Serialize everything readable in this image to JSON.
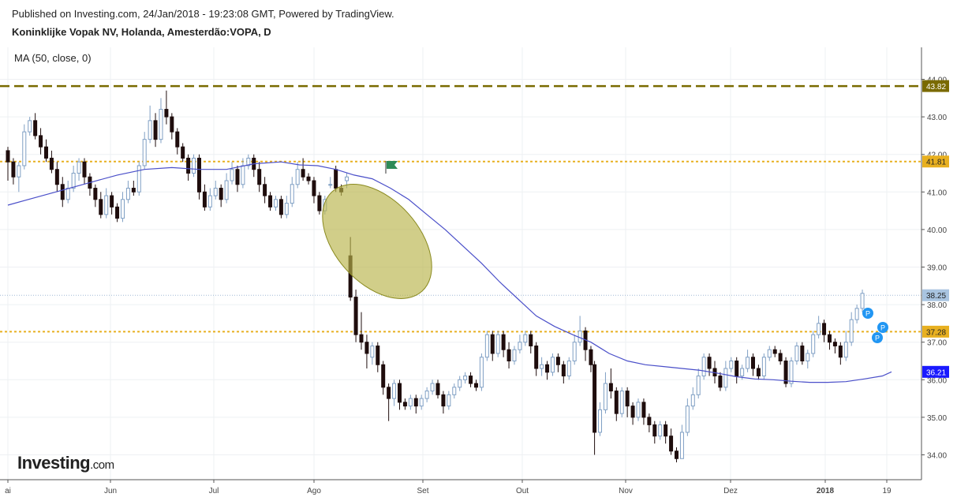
{
  "header": {
    "published": "Published on Investing.com, 24/Jan/2018 - 19:23:08 GMT, Powered by TradingView.",
    "symbol": "Koninklijke Vopak NV, Holanda, Amesterdão:VOPA, D",
    "indicator": "MA (50, close, 0)"
  },
  "logo": {
    "brand": "Investing",
    "domain": ".com"
  },
  "colors": {
    "up": "#a9c4e0",
    "down": "#1f0d0d",
    "ma": "#4a4fc9",
    "resistance_dashed": "#7a6a00",
    "level_dotted": "#e8b020",
    "price_badge": "#a9c4e0",
    "ma_badge": "#1a1aff",
    "ellipse": "#b8b34a",
    "marker": "#2196f3",
    "flag": "#2e8b57"
  },
  "chart_data": {
    "type": "candlestick",
    "y_axis": {
      "min": 33.5,
      "max": 44.2,
      "ticks": [
        "34.00",
        "35.00",
        "36.00",
        "37.00",
        "38.00",
        "39.00",
        "40.00",
        "41.00",
        "42.00",
        "43.00",
        "44.00"
      ]
    },
    "x_axis": {
      "labels": [
        "ai",
        "Jun",
        "Jul",
        "Ago",
        "Set",
        "Out",
        "Nov",
        "Dez",
        "2018",
        "19"
      ]
    },
    "horizontal_levels": [
      {
        "value": 43.82,
        "label": "43.82",
        "style": "dashed"
      },
      {
        "value": 41.81,
        "label": "41.81",
        "style": "dotted"
      },
      {
        "value": 37.28,
        "label": "37.28",
        "style": "dotted"
      }
    ],
    "last_price": {
      "value": 38.25,
      "label": "38.25"
    },
    "ma_value": {
      "value": 36.21,
      "label": "36.21"
    },
    "ma_series": [
      [
        0,
        40.65
      ],
      [
        15,
        40.85
      ],
      [
        30,
        41.05
      ],
      [
        45,
        41.25
      ],
      [
        60,
        41.45
      ],
      [
        75,
        41.6
      ],
      [
        90,
        41.65
      ],
      [
        105,
        41.6
      ],
      [
        120,
        41.6
      ],
      [
        135,
        41.75
      ],
      [
        150,
        41.8
      ],
      [
        160,
        41.72
      ],
      [
        170,
        41.7
      ],
      [
        180,
        41.6
      ],
      [
        190,
        41.45
      ],
      [
        200,
        41.35
      ],
      [
        210,
        41.1
      ],
      [
        220,
        40.8
      ],
      [
        230,
        40.4
      ],
      [
        240,
        40.0
      ],
      [
        250,
        39.55
      ],
      [
        260,
        39.1
      ],
      [
        270,
        38.6
      ],
      [
        280,
        38.15
      ],
      [
        290,
        37.7
      ],
      [
        300,
        37.42
      ],
      [
        310,
        37.2
      ],
      [
        320,
        37.0
      ],
      [
        330,
        36.7
      ],
      [
        340,
        36.5
      ],
      [
        350,
        36.4
      ],
      [
        360,
        36.35
      ],
      [
        370,
        36.3
      ],
      [
        380,
        36.25
      ],
      [
        390,
        36.17
      ],
      [
        400,
        36.08
      ],
      [
        410,
        36.02
      ],
      [
        420,
        36.0
      ],
      [
        430,
        35.96
      ],
      [
        440,
        35.93
      ],
      [
        450,
        35.93
      ],
      [
        460,
        35.95
      ],
      [
        470,
        36.02
      ],
      [
        480,
        36.1
      ],
      [
        485,
        36.21
      ]
    ],
    "candles": [
      [
        0,
        42.1,
        41.8,
        42.2,
        41.3
      ],
      [
        3,
        41.8,
        41.4,
        41.9,
        41.2
      ],
      [
        6,
        41.4,
        41.7,
        41.8,
        41.0
      ],
      [
        9,
        41.7,
        42.6,
        42.8,
        41.6
      ],
      [
        12,
        42.6,
        42.9,
        43.0,
        42.5
      ],
      [
        15,
        42.9,
        42.5,
        43.1,
        42.4
      ],
      [
        18,
        42.5,
        42.2,
        42.7,
        42.0
      ],
      [
        21,
        42.2,
        41.9,
        42.4,
        41.8
      ],
      [
        24,
        41.9,
        41.6,
        42.1,
        41.5
      ],
      [
        27,
        41.6,
        41.2,
        41.8,
        41.0
      ],
      [
        30,
        41.2,
        40.8,
        41.4,
        40.6
      ],
      [
        33,
        40.8,
        41.1,
        41.3,
        40.7
      ],
      [
        36,
        41.1,
        41.5,
        41.7,
        41.0
      ],
      [
        39,
        41.5,
        41.8,
        41.9,
        41.3
      ],
      [
        42,
        41.8,
        41.4,
        41.9,
        41.2
      ],
      [
        45,
        41.4,
        41.1,
        41.5,
        40.9
      ],
      [
        48,
        41.1,
        40.8,
        41.2,
        40.6
      ],
      [
        51,
        40.8,
        40.4,
        41.0,
        40.3
      ],
      [
        54,
        40.4,
        40.9,
        41.1,
        40.3
      ],
      [
        57,
        40.9,
        40.6,
        41.0,
        40.4
      ],
      [
        60,
        40.6,
        40.3,
        40.7,
        40.2
      ],
      [
        63,
        40.3,
        40.8,
        41.0,
        40.2
      ],
      [
        66,
        40.8,
        41.1,
        41.3,
        40.7
      ],
      [
        69,
        41.1,
        41.0,
        41.3,
        40.9
      ],
      [
        72,
        41.0,
        41.7,
        41.8,
        40.9
      ],
      [
        75,
        41.7,
        42.4,
        42.6,
        41.6
      ],
      [
        78,
        42.4,
        42.9,
        43.3,
        42.3
      ],
      [
        81,
        42.9,
        42.4,
        43.1,
        42.2
      ],
      [
        84,
        42.4,
        43.2,
        43.5,
        42.3
      ],
      [
        87,
        43.2,
        43.0,
        43.7,
        42.8
      ],
      [
        90,
        43.0,
        42.6,
        43.1,
        42.4
      ],
      [
        93,
        42.6,
        42.2,
        42.7,
        42.0
      ],
      [
        96,
        42.2,
        41.9,
        42.3,
        41.8
      ],
      [
        99,
        41.9,
        41.5,
        42.0,
        41.3
      ],
      [
        102,
        41.5,
        41.9,
        42.0,
        41.4
      ],
      [
        105,
        41.9,
        41.0,
        42.0,
        40.8
      ],
      [
        108,
        41.0,
        40.6,
        41.2,
        40.5
      ],
      [
        111,
        40.6,
        40.9,
        41.1,
        40.5
      ],
      [
        114,
        40.9,
        41.1,
        41.3,
        40.8
      ],
      [
        117,
        41.1,
        40.8,
        41.2,
        40.6
      ],
      [
        120,
        40.8,
        41.3,
        41.5,
        40.7
      ],
      [
        123,
        41.3,
        41.6,
        41.8,
        41.2
      ],
      [
        126,
        41.6,
        41.2,
        41.7,
        41.0
      ],
      [
        129,
        41.2,
        41.7,
        41.9,
        41.1
      ],
      [
        132,
        41.7,
        41.9,
        42.0,
        41.6
      ],
      [
        135,
        41.9,
        41.6,
        42.0,
        41.4
      ],
      [
        138,
        41.6,
        41.2,
        41.8,
        41.0
      ],
      [
        141,
        41.2,
        40.9,
        41.4,
        40.7
      ],
      [
        144,
        40.9,
        40.6,
        41.0,
        40.5
      ],
      [
        147,
        40.6,
        40.8,
        40.9,
        40.5
      ],
      [
        150,
        40.8,
        40.4,
        40.9,
        40.3
      ],
      [
        153,
        40.4,
        40.7,
        40.9,
        40.3
      ],
      [
        156,
        40.7,
        41.2,
        41.4,
        40.6
      ],
      [
        159,
        41.2,
        41.6,
        41.8,
        41.1
      ],
      [
        162,
        41.6,
        41.4,
        41.9,
        41.3
      ],
      [
        165,
        41.4,
        41.3,
        41.5,
        41.2
      ],
      [
        168,
        41.3,
        40.9,
        41.4,
        40.7
      ],
      [
        171,
        40.9,
        40.5,
        41.0,
        40.4
      ],
      [
        174,
        40.5,
        40.8,
        40.9,
        40.4
      ],
      [
        177,
        41.2,
        41.2,
        41.4,
        41.1
      ],
      [
        180,
        41.6,
        41.1,
        41.7,
        41.0
      ],
      [
        183,
        41.1,
        41.0,
        41.2,
        40.9
      ],
      [
        186,
        41.3,
        41.4,
        41.5,
        41.1
      ],
      [
        188,
        39.3,
        38.2,
        39.8,
        38.1
      ],
      [
        191,
        38.2,
        37.2,
        38.4,
        37.0
      ],
      [
        194,
        37.2,
        37.0,
        37.8,
        36.8
      ],
      [
        197,
        37.0,
        36.7,
        37.2,
        36.3
      ],
      [
        200,
        36.6,
        36.9,
        37.0,
        36.4
      ],
      [
        203,
        36.9,
        36.4,
        37.0,
        36.2
      ],
      [
        206,
        36.4,
        35.8,
        36.5,
        35.6
      ],
      [
        209,
        35.8,
        35.5,
        35.9,
        34.9
      ],
      [
        212,
        35.5,
        35.9,
        36.0,
        35.3
      ],
      [
        215,
        35.9,
        35.4,
        36.0,
        35.2
      ],
      [
        218,
        35.4,
        35.3,
        35.5,
        35.2
      ],
      [
        221,
        35.3,
        35.5,
        35.6,
        35.2
      ],
      [
        224,
        35.5,
        35.3,
        35.6,
        35.1
      ],
      [
        227,
        35.3,
        35.5,
        35.6,
        35.2
      ],
      [
        230,
        35.5,
        35.7,
        35.8,
        35.4
      ],
      [
        233,
        35.7,
        35.9,
        36.0,
        35.6
      ],
      [
        236,
        35.9,
        35.6,
        36.0,
        35.5
      ],
      [
        239,
        35.6,
        35.3,
        35.7,
        35.1
      ],
      [
        242,
        35.3,
        35.6,
        35.7,
        35.2
      ],
      [
        245,
        35.6,
        35.8,
        35.9,
        35.5
      ],
      [
        248,
        35.8,
        36.0,
        36.1,
        35.7
      ],
      [
        251,
        36.0,
        36.1,
        36.2,
        35.9
      ],
      [
        254,
        36.1,
        35.9,
        36.2,
        35.8
      ],
      [
        257,
        35.9,
        35.8,
        36.0,
        35.7
      ],
      [
        260,
        35.8,
        36.6,
        36.7,
        35.7
      ],
      [
        263,
        36.6,
        37.2,
        37.3,
        36.5
      ],
      [
        266,
        37.2,
        36.7,
        37.3,
        36.5
      ],
      [
        269,
        36.7,
        37.2,
        37.3,
        36.6
      ],
      [
        272,
        37.2,
        36.8,
        37.3,
        36.6
      ],
      [
        275,
        36.8,
        36.5,
        37.0,
        36.3
      ],
      [
        278,
        36.5,
        36.8,
        36.9,
        36.4
      ],
      [
        281,
        36.8,
        37.0,
        37.2,
        36.7
      ],
      [
        284,
        37.0,
        37.2,
        37.3,
        36.9
      ],
      [
        287,
        37.2,
        36.9,
        37.3,
        36.7
      ],
      [
        290,
        36.9,
        36.3,
        37.0,
        36.1
      ],
      [
        293,
        36.3,
        36.4,
        36.6,
        36.1
      ],
      [
        296,
        36.4,
        36.2,
        36.5,
        36.0
      ],
      [
        299,
        36.2,
        36.6,
        36.7,
        36.1
      ],
      [
        302,
        36.6,
        36.4,
        36.7,
        36.2
      ],
      [
        305,
        36.4,
        36.1,
        36.5,
        35.9
      ],
      [
        308,
        36.1,
        36.5,
        36.6,
        36.0
      ],
      [
        311,
        36.5,
        37.0,
        37.2,
        36.4
      ],
      [
        314,
        37.0,
        37.3,
        37.7,
        36.9
      ],
      [
        317,
        37.3,
        36.8,
        37.4,
        36.5
      ],
      [
        320,
        36.8,
        36.4,
        36.9,
        36.2
      ],
      [
        322,
        36.4,
        34.6,
        36.5,
        34.0
      ],
      [
        325,
        34.6,
        35.2,
        35.4,
        34.5
      ],
      [
        328,
        35.2,
        35.9,
        36.2,
        35.1
      ],
      [
        331,
        35.9,
        35.7,
        36.3,
        35.5
      ],
      [
        334,
        35.7,
        35.1,
        35.8,
        34.9
      ],
      [
        337,
        35.1,
        35.7,
        35.8,
        35.0
      ],
      [
        340,
        35.7,
        35.3,
        35.8,
        35.0
      ],
      [
        343,
        35.3,
        35.0,
        35.4,
        34.8
      ],
      [
        346,
        35.0,
        35.4,
        35.5,
        34.9
      ],
      [
        349,
        35.4,
        35.0,
        35.5,
        34.8
      ],
      [
        352,
        35.0,
        34.8,
        35.1,
        34.6
      ],
      [
        355,
        34.8,
        34.5,
        34.9,
        34.3
      ],
      [
        358,
        34.5,
        34.8,
        34.9,
        34.4
      ],
      [
        361,
        34.8,
        34.5,
        34.9,
        34.3
      ],
      [
        364,
        34.5,
        34.1,
        34.7,
        34.0
      ],
      [
        367,
        34.1,
        33.9,
        34.2,
        33.8
      ],
      [
        370,
        33.9,
        34.6,
        34.8,
        33.9
      ],
      [
        373,
        34.6,
        35.3,
        35.5,
        34.5
      ],
      [
        376,
        35.3,
        35.6,
        35.8,
        35.2
      ],
      [
        379,
        35.6,
        36.1,
        36.3,
        35.5
      ],
      [
        382,
        36.1,
        36.6,
        36.7,
        36.0
      ],
      [
        385,
        36.6,
        36.3,
        36.7,
        36.1
      ],
      [
        388,
        36.3,
        36.1,
        36.5,
        35.9
      ],
      [
        391,
        36.1,
        35.8,
        36.2,
        35.7
      ],
      [
        394,
        35.8,
        36.3,
        36.5,
        35.7
      ],
      [
        397,
        36.3,
        36.5,
        36.6,
        36.2
      ],
      [
        400,
        36.5,
        36.1,
        36.6,
        35.9
      ],
      [
        403,
        36.1,
        36.3,
        36.4,
        36.0
      ],
      [
        406,
        36.3,
        36.6,
        36.8,
        36.2
      ],
      [
        409,
        36.6,
        36.3,
        36.7,
        36.1
      ],
      [
        412,
        36.3,
        36.1,
        36.4,
        36.0
      ],
      [
        415,
        36.1,
        36.6,
        36.7,
        36.0
      ],
      [
        418,
        36.6,
        36.8,
        36.9,
        36.5
      ],
      [
        421,
        36.8,
        36.7,
        36.9,
        36.6
      ],
      [
        424,
        36.7,
        36.5,
        36.8,
        36.4
      ],
      [
        427,
        36.5,
        35.9,
        36.6,
        35.8
      ],
      [
        430,
        35.9,
        36.5,
        36.6,
        35.8
      ],
      [
        433,
        36.5,
        36.9,
        37.0,
        36.4
      ],
      [
        436,
        36.9,
        36.5,
        37.0,
        36.4
      ],
      [
        439,
        36.5,
        36.7,
        36.8,
        36.3
      ],
      [
        442,
        36.7,
        37.2,
        37.3,
        36.6
      ],
      [
        445,
        37.2,
        37.5,
        37.7,
        37.1
      ],
      [
        448,
        37.5,
        37.2,
        37.6,
        37.0
      ],
      [
        451,
        37.2,
        37.0,
        37.3,
        36.8
      ],
      [
        454,
        37.0,
        36.9,
        37.1,
        36.7
      ],
      [
        457,
        36.9,
        36.6,
        37.0,
        36.4
      ],
      [
        460,
        36.6,
        37.0,
        37.3,
        36.5
      ],
      [
        463,
        37.0,
        37.6,
        37.8,
        36.9
      ],
      [
        466,
        37.6,
        37.9,
        38.0,
        37.5
      ],
      [
        469,
        37.9,
        38.3,
        38.4,
        37.8
      ]
    ]
  }
}
